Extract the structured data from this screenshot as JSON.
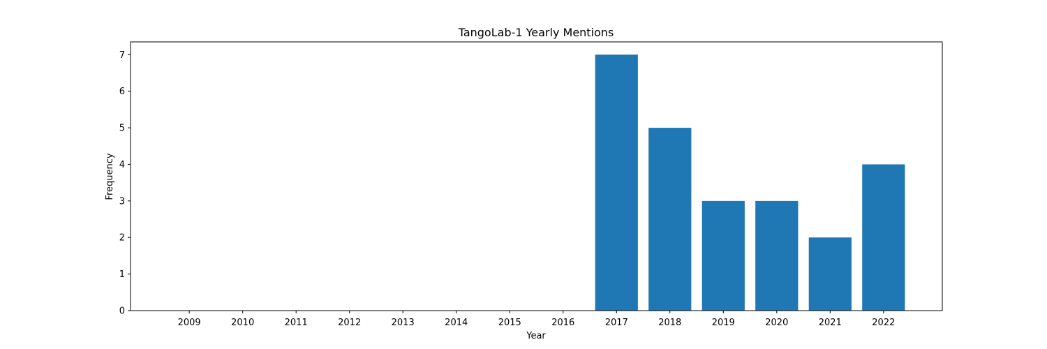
{
  "chart_data": {
    "type": "bar",
    "title": "TangoLab-1 Yearly Mentions",
    "xlabel": "Year",
    "ylabel": "Frequency",
    "categories": [
      "2009",
      "2010",
      "2011",
      "2012",
      "2013",
      "2014",
      "2015",
      "2016",
      "2017",
      "2018",
      "2019",
      "2020",
      "2021",
      "2022"
    ],
    "values": [
      0,
      0,
      0,
      0,
      0,
      0,
      0,
      0,
      7,
      5,
      3,
      3,
      2,
      4
    ],
    "ylim": [
      0,
      7.35
    ],
    "yticks": [
      0,
      1,
      2,
      3,
      4,
      5,
      6,
      7
    ],
    "grid": false,
    "legend": "none",
    "bar_color": "#1f77b4"
  }
}
